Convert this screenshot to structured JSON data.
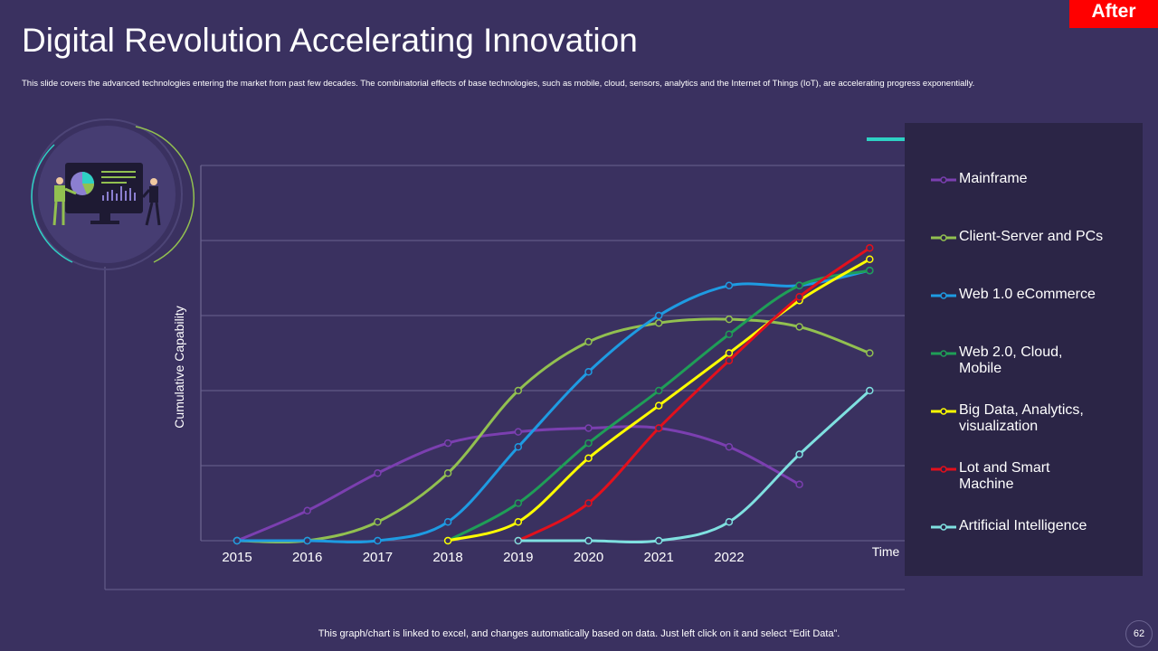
{
  "header": {
    "title": "Digital Revolution Accelerating Innovation",
    "subtitle": "This slide covers the advanced technologies entering the market  from past few decades. The combinatorial effects of base technologies, such as mobile, cloud, sensors, analytics and the Internet of Things  (IoT), are accelerating progress exponentially.",
    "badge": "After"
  },
  "footer": {
    "note": "This graph/chart is linked to excel,  and changes automatically based on data. Just left click on it and select “Edit Data”.",
    "page_number": "62"
  },
  "chart_data": {
    "type": "line",
    "x_label": "Time",
    "y_label": "Cumulative Capability",
    "categories": [
      "2015",
      "2016",
      "2017",
      "2018",
      "2019",
      "2020",
      "2021",
      "2022",
      null,
      null
    ],
    "ylim": [
      0,
      5
    ],
    "ygrid": [
      0,
      1,
      2,
      3,
      4,
      5
    ],
    "grid": true,
    "smooth": true,
    "series": [
      {
        "name": "Mainframe",
        "color": "#7b3fb0",
        "values": [
          0,
          0.4,
          0.9,
          1.3,
          1.45,
          1.5,
          1.5,
          1.25,
          0.75,
          null
        ]
      },
      {
        "name": "Client-Server and PCs",
        "color": "#92c050",
        "values": [
          0,
          0,
          0.25,
          0.9,
          2.0,
          2.65,
          2.9,
          2.95,
          2.85,
          2.5
        ]
      },
      {
        "name": "Web 1.0 eCommerce",
        "color": "#1e9be2",
        "values": [
          0,
          0,
          0,
          0.25,
          1.25,
          2.25,
          3.0,
          3.4,
          3.4,
          3.6
        ]
      },
      {
        "name": "Web 2.0, Cloud, Mobile",
        "color": "#1f9e57",
        "values": [
          null,
          null,
          null,
          0,
          0.5,
          1.3,
          2.0,
          2.75,
          3.4,
          3.6
        ]
      },
      {
        "name": "Big Data, Analytics, visualization",
        "color": "#ffff00",
        "values": [
          null,
          null,
          null,
          0,
          0.25,
          1.1,
          1.8,
          2.5,
          3.2,
          3.75
        ]
      },
      {
        "name": "Lot and Smart Machine",
        "color": "#e3101c",
        "values": [
          null,
          null,
          null,
          null,
          0,
          0.5,
          1.5,
          2.4,
          3.25,
          3.9
        ]
      },
      {
        "name": "Artificial Intelligence",
        "color": "#7fe0e0",
        "values": [
          null,
          null,
          null,
          null,
          0,
          0,
          0,
          0.25,
          1.15,
          2.0
        ]
      }
    ]
  }
}
